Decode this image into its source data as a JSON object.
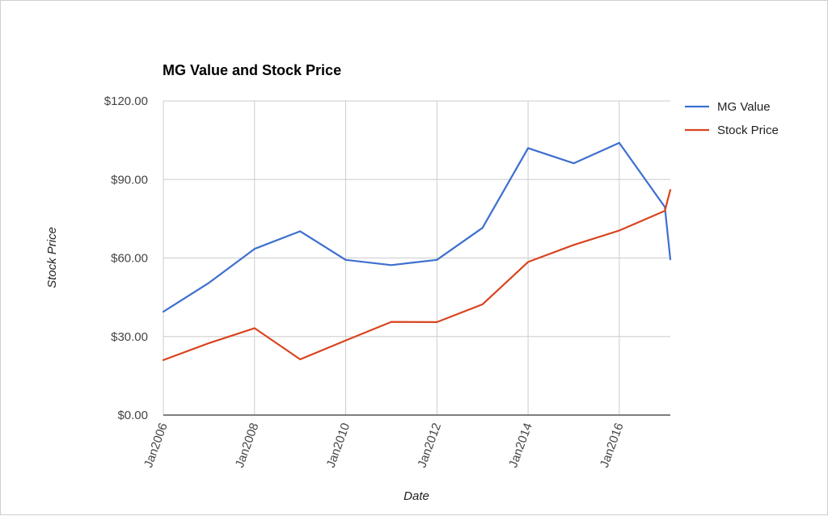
{
  "chart_data": {
    "type": "line",
    "title": "MG Value and Stock Price",
    "xlabel": "Date",
    "ylabel": "Stock Price",
    "x": [
      2006.0,
      2007.0,
      2008.0,
      2009.0,
      2010.0,
      2011.0,
      2012.0,
      2013.0,
      2014.0,
      2015.0,
      2016.0,
      2017.0,
      2017.12
    ],
    "x_ticks": [
      2006,
      2008,
      2010,
      2012,
      2014,
      2016
    ],
    "x_tick_labels": [
      "Jan2006",
      "Jan2008",
      "Jan2010",
      "Jan2012",
      "Jan2014",
      "Jan2016"
    ],
    "ylim": [
      0,
      120
    ],
    "y_ticks": [
      0,
      30,
      60,
      90,
      120
    ],
    "y_tick_labels": [
      "$0.00",
      "$30.00",
      "$60.00",
      "$90.00",
      "$120.00"
    ],
    "grid": true,
    "legend_position": "right",
    "series": [
      {
        "name": "MG Value",
        "color": "#3d6fcf",
        "values": [
          39.5,
          50.5,
          63.5,
          70.2,
          59.3,
          57.3,
          59.3,
          71.5,
          102.0,
          96.2,
          104.0,
          79.5,
          59.5
        ]
      },
      {
        "name": "Stock Price",
        "color": "#d9441f",
        "values": [
          21.0,
          27.5,
          33.2,
          21.3,
          28.5,
          35.6,
          35.5,
          42.3,
          58.5,
          65.0,
          70.5,
          78.0,
          86.0
        ]
      }
    ]
  }
}
